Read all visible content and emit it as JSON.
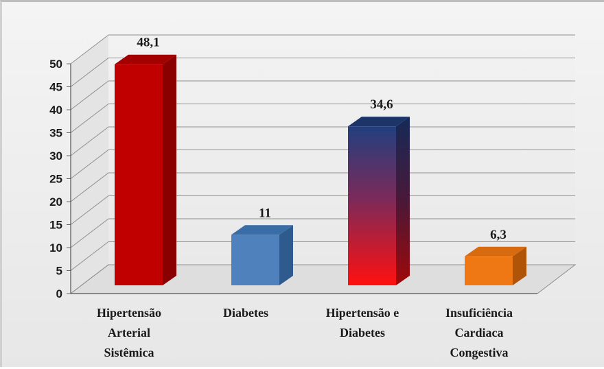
{
  "chart_data": {
    "type": "bar",
    "categories": [
      [
        "Hipertensão",
        "Arterial",
        "Sistêmica"
      ],
      [
        "Diabetes"
      ],
      [
        "Hipertensão e",
        "Diabetes"
      ],
      [
        "Insuficiência",
        "Cardiaca",
        "Congestiva"
      ]
    ],
    "values": [
      48.1,
      11,
      34.6,
      6.3
    ],
    "value_labels": [
      "48,1",
      "11",
      "34,6",
      "6,3"
    ],
    "yticks": [
      0,
      5,
      10,
      15,
      20,
      25,
      30,
      35,
      40,
      45,
      50
    ],
    "ylim": [
      0,
      50
    ],
    "grid": true,
    "style": "3d-column",
    "colors": {
      "bar1": "#c00000",
      "bar2": "#4f81bd",
      "bar3_top": "#1f3e7a",
      "bar3_bottom": "#ff0000",
      "bar4": "#f07814"
    }
  }
}
